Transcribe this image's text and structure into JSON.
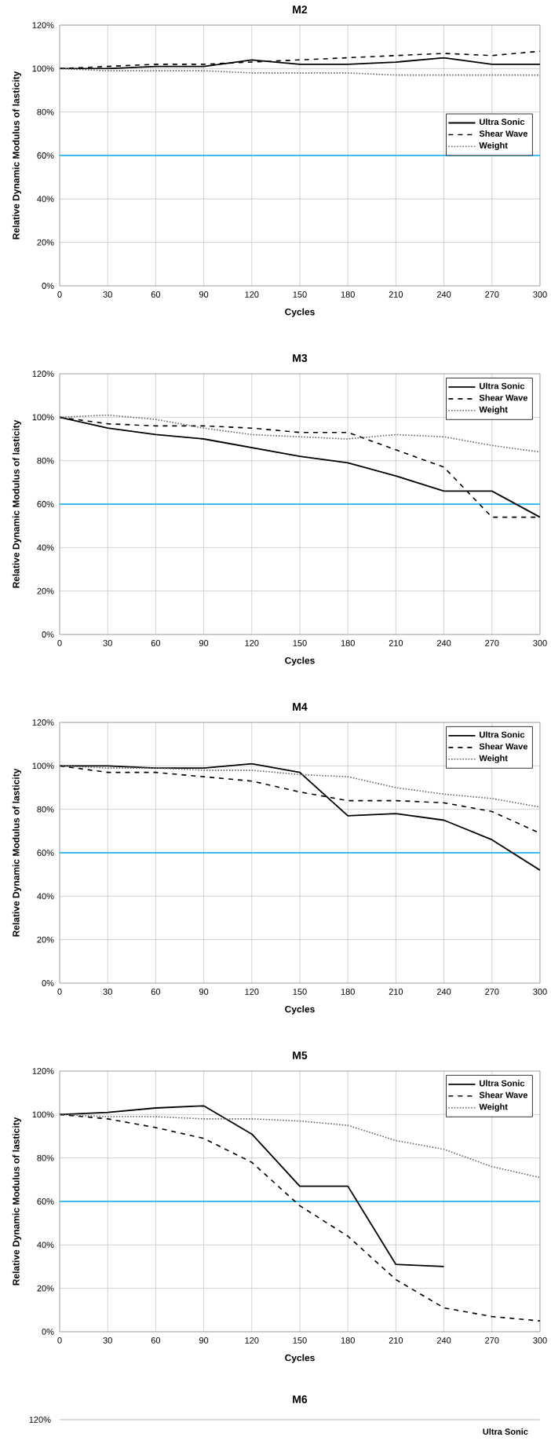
{
  "chart_data": [
    {
      "type": "line",
      "title": "M2",
      "xlabel": "Cycles",
      "ylabel": "Relative Dynamic Modulus of lasticity",
      "x": [
        0,
        30,
        60,
        90,
        120,
        150,
        180,
        210,
        240,
        270,
        300
      ],
      "series": [
        {
          "name": "Ultra Sonic",
          "color": "#000000",
          "line_style": "solid",
          "values": [
            100,
            100,
            101,
            101,
            104,
            102,
            102,
            103,
            105,
            102,
            102
          ]
        },
        {
          "name": "Shear Wave",
          "color": "#000000",
          "line_style": "dashed",
          "values": [
            100,
            101,
            102,
            102,
            103,
            104,
            105,
            106,
            107,
            106,
            108
          ]
        },
        {
          "name": "Weight",
          "color": "#666666",
          "line_style": "dotted",
          "values": [
            100,
            99,
            99,
            99,
            98,
            98,
            98,
            97,
            97,
            97,
            97
          ]
        }
      ],
      "xlim": [
        0,
        300
      ],
      "xticks": [
        0,
        30,
        60,
        90,
        120,
        150,
        180,
        210,
        240,
        270,
        300
      ],
      "ylim": [
        0,
        120
      ],
      "yticks": [
        {
          "value": 0,
          "label": "0%"
        },
        {
          "value": 20,
          "label": "20%"
        },
        {
          "value": 40,
          "label": "40%"
        },
        {
          "value": 60,
          "label": "60%"
        },
        {
          "value": 80,
          "label": "80%"
        },
        {
          "value": 100,
          "label": "100%"
        },
        {
          "value": 120,
          "label": "120%"
        }
      ],
      "ref_lines": [
        {
          "axis": "y",
          "value": 60,
          "color": "#00b0f0"
        }
      ],
      "grid": true,
      "legend": "right"
    },
    {
      "type": "line",
      "title": "M3",
      "xlabel": "Cycles",
      "ylabel": "Relative Dynamic Modulus of lasticity",
      "x": [
        0,
        30,
        60,
        90,
        120,
        150,
        180,
        210,
        240,
        270,
        300
      ],
      "series": [
        {
          "name": "Ultra Sonic",
          "color": "#000000",
          "line_style": "solid",
          "values": [
            100,
            95,
            92,
            90,
            86,
            82,
            79,
            73,
            66,
            66,
            54
          ]
        },
        {
          "name": "Shear Wave",
          "color": "#000000",
          "line_style": "dashed",
          "values": [
            100,
            97,
            96,
            96,
            95,
            93,
            93,
            85,
            77,
            54,
            54
          ]
        },
        {
          "name": "Weight",
          "color": "#666666",
          "line_style": "dotted",
          "values": [
            100,
            101,
            99,
            95,
            92,
            91,
            90,
            92,
            91,
            87,
            84
          ]
        }
      ],
      "xlim": [
        0,
        300
      ],
      "xticks": [
        0,
        30,
        60,
        90,
        120,
        150,
        180,
        210,
        240,
        270,
        300
      ],
      "ylim": [
        0,
        120
      ],
      "yticks": [
        {
          "value": 0,
          "label": "0%"
        },
        {
          "value": 20,
          "label": "20%"
        },
        {
          "value": 40,
          "label": "40%"
        },
        {
          "value": 60,
          "label": "60%"
        },
        {
          "value": 80,
          "label": "80%"
        },
        {
          "value": 100,
          "label": "100%"
        },
        {
          "value": 120,
          "label": "120%"
        }
      ],
      "ref_lines": [
        {
          "axis": "y",
          "value": 60,
          "color": "#00b0f0"
        }
      ],
      "grid": true,
      "legend": "top right"
    },
    {
      "type": "line",
      "title": "M4",
      "xlabel": "Cycles",
      "ylabel": "Relative Dynamic Modulus of lasticity",
      "x": [
        0,
        30,
        60,
        90,
        120,
        150,
        180,
        210,
        240,
        270,
        300
      ],
      "series": [
        {
          "name": "Ultra Sonic",
          "color": "#000000",
          "line_style": "solid",
          "values": [
            100,
            100,
            99,
            99,
            101,
            97,
            77,
            78,
            75,
            66,
            52
          ]
        },
        {
          "name": "Shear Wave",
          "color": "#000000",
          "line_style": "dashed",
          "values": [
            100,
            97,
            97,
            95,
            93,
            88,
            84,
            84,
            83,
            79,
            69
          ]
        },
        {
          "name": "Weight",
          "color": "#666666",
          "line_style": "dotted",
          "values": [
            100,
            99,
            99,
            98,
            98,
            96,
            95,
            90,
            87,
            85,
            81
          ]
        }
      ],
      "xlim": [
        0,
        300
      ],
      "xticks": [
        0,
        30,
        60,
        90,
        120,
        150,
        180,
        210,
        240,
        270,
        300
      ],
      "ylim": [
        0,
        120
      ],
      "yticks": [
        {
          "value": 0,
          "label": "0%"
        },
        {
          "value": 20,
          "label": "20%"
        },
        {
          "value": 40,
          "label": "40%"
        },
        {
          "value": 60,
          "label": "60%"
        },
        {
          "value": 80,
          "label": "80%"
        },
        {
          "value": 100,
          "label": "100%"
        },
        {
          "value": 120,
          "label": "120%"
        }
      ],
      "ref_lines": [
        {
          "axis": "y",
          "value": 60,
          "color": "#00b0f0"
        }
      ],
      "grid": true,
      "legend": "top right"
    },
    {
      "type": "line",
      "title": "M5",
      "xlabel": "Cycles",
      "ylabel": "Relative Dynamic Modulus of lasticity",
      "x": [
        0,
        30,
        60,
        90,
        120,
        150,
        180,
        210,
        240,
        270,
        300
      ],
      "series": [
        {
          "name": "Ultra Sonic",
          "color": "#000000",
          "line_style": "solid",
          "values": [
            100,
            101,
            103,
            104,
            91,
            67,
            67,
            31,
            30,
            null,
            null
          ]
        },
        {
          "name": "Shear Wave",
          "color": "#000000",
          "line_style": "dashed",
          "values": [
            100,
            98,
            94,
            89,
            78,
            58,
            44,
            24,
            11,
            7,
            5
          ]
        },
        {
          "name": "Weight",
          "color": "#666666",
          "line_style": "dotted",
          "values": [
            100,
            99,
            99,
            98,
            98,
            97,
            95,
            88,
            84,
            76,
            71
          ]
        }
      ],
      "xlim": [
        0,
        300
      ],
      "xticks": [
        0,
        30,
        60,
        90,
        120,
        150,
        180,
        210,
        240,
        270,
        300
      ],
      "ylim": [
        0,
        120
      ],
      "yticks": [
        {
          "value": 0,
          "label": "0%"
        },
        {
          "value": 20,
          "label": "20%"
        },
        {
          "value": 40,
          "label": "40%"
        },
        {
          "value": 60,
          "label": "60%"
        },
        {
          "value": 80,
          "label": "80%"
        },
        {
          "value": 100,
          "label": "100%"
        },
        {
          "value": 120,
          "label": "120%"
        }
      ],
      "ref_lines": [
        {
          "axis": "y",
          "value": 60,
          "color": "#00b0f0"
        }
      ],
      "grid": true,
      "legend": "top right"
    },
    {
      "type": "other",
      "title": "M6",
      "annotations": [
        "120%",
        "Ultra Sonic"
      ]
    }
  ]
}
